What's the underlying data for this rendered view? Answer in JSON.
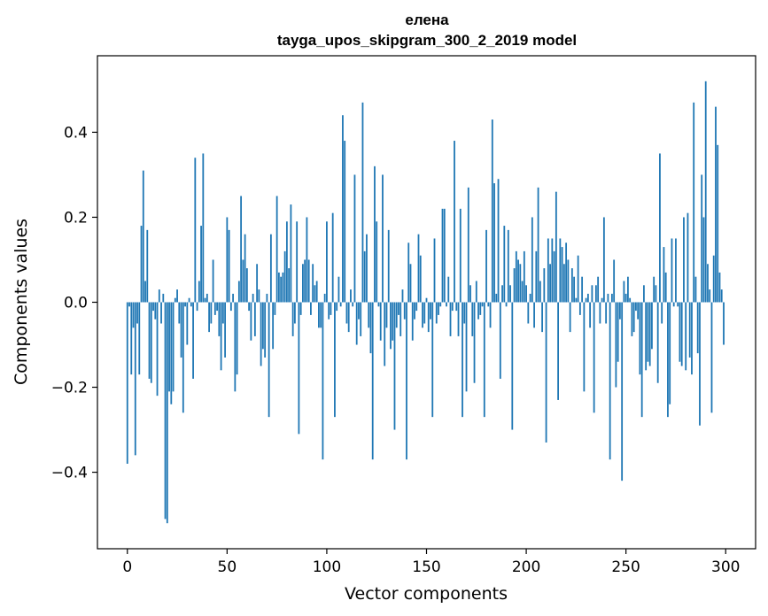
{
  "chart_data": {
    "type": "bar",
    "title": "елена",
    "subtitle": "tayga_upos_skipgram_300_2_2019 model",
    "xlabel": "Vector components",
    "ylabel": "Components values",
    "xlim": [
      -15,
      315
    ],
    "ylim": [
      -0.58,
      0.58
    ],
    "xticks": [
      0,
      50,
      100,
      150,
      200,
      250,
      300
    ],
    "xtick_labels": [
      "0",
      "50",
      "100",
      "150",
      "200",
      "250",
      "300"
    ],
    "yticks": [
      -0.4,
      -0.2,
      0.0,
      0.2,
      0.4
    ],
    "ytick_labels": [
      "−0.4",
      "−0.2",
      "0.0",
      "0.2",
      "0.4"
    ],
    "grid": false,
    "bar_color": "#1f77b4",
    "x": [
      0,
      1,
      2,
      3,
      4,
      5,
      6,
      7,
      8,
      9,
      10,
      11,
      12,
      13,
      14,
      15,
      16,
      17,
      18,
      19,
      20,
      21,
      22,
      23,
      24,
      25,
      26,
      27,
      28,
      29,
      30,
      31,
      32,
      33,
      34,
      35,
      36,
      37,
      38,
      39,
      40,
      41,
      42,
      43,
      44,
      45,
      46,
      47,
      48,
      49,
      50,
      51,
      52,
      53,
      54,
      55,
      56,
      57,
      58,
      59,
      60,
      61,
      62,
      63,
      64,
      65,
      66,
      67,
      68,
      69,
      70,
      71,
      72,
      73,
      74,
      75,
      76,
      77,
      78,
      79,
      80,
      81,
      82,
      83,
      84,
      85,
      86,
      87,
      88,
      89,
      90,
      91,
      92,
      93,
      94,
      95,
      96,
      97,
      98,
      99,
      100,
      101,
      102,
      103,
      104,
      105,
      106,
      107,
      108,
      109,
      110,
      111,
      112,
      113,
      114,
      115,
      116,
      117,
      118,
      119,
      120,
      121,
      122,
      123,
      124,
      125,
      126,
      127,
      128,
      129,
      130,
      131,
      132,
      133,
      134,
      135,
      136,
      137,
      138,
      139,
      140,
      141,
      142,
      143,
      144,
      145,
      146,
      147,
      148,
      149,
      150,
      151,
      152,
      153,
      154,
      155,
      156,
      157,
      158,
      159,
      160,
      161,
      162,
      163,
      164,
      165,
      166,
      167,
      168,
      169,
      170,
      171,
      172,
      173,
      174,
      175,
      176,
      177,
      178,
      179,
      180,
      181,
      182,
      183,
      184,
      185,
      186,
      187,
      188,
      189,
      190,
      191,
      192,
      193,
      194,
      195,
      196,
      197,
      198,
      199,
      200,
      201,
      202,
      203,
      204,
      205,
      206,
      207,
      208,
      209,
      210,
      211,
      212,
      213,
      214,
      215,
      216,
      217,
      218,
      219,
      220,
      221,
      222,
      223,
      224,
      225,
      226,
      227,
      228,
      229,
      230,
      231,
      232,
      233,
      234,
      235,
      236,
      237,
      238,
      239,
      240,
      241,
      242,
      243,
      244,
      245,
      246,
      247,
      248,
      249,
      250,
      251,
      252,
      253,
      254,
      255,
      256,
      257,
      258,
      259,
      260,
      261,
      262,
      263,
      264,
      265,
      266,
      267,
      268,
      269,
      270,
      271,
      272,
      273,
      274,
      275,
      276,
      277,
      278,
      279,
      280,
      281,
      282,
      283,
      284,
      285,
      286,
      287,
      288,
      289,
      290,
      291,
      292,
      293,
      294,
      295,
      296,
      297,
      298,
      299
    ],
    "values": [
      -0.38,
      -0.01,
      -0.17,
      -0.06,
      -0.36,
      -0.05,
      -0.17,
      0.18,
      0.31,
      0.05,
      0.17,
      -0.18,
      -0.19,
      -0.02,
      -0.04,
      -0.22,
      0.03,
      -0.05,
      0.02,
      -0.51,
      -0.52,
      -0.21,
      -0.24,
      -0.21,
      0.01,
      0.03,
      -0.05,
      -0.13,
      -0.26,
      -0.01,
      -0.1,
      0.01,
      -0.01,
      -0.18,
      0.34,
      -0.02,
      0.05,
      0.18,
      0.35,
      0.01,
      0.02,
      -0.07,
      -0.05,
      0.1,
      -0.03,
      -0.02,
      -0.08,
      -0.16,
      -0.05,
      -0.13,
      0.2,
      0.17,
      -0.02,
      0.02,
      -0.21,
      -0.17,
      0.05,
      0.25,
      0.1,
      0.16,
      0.08,
      -0.02,
      -0.09,
      0.02,
      -0.08,
      0.09,
      0.03,
      -0.15,
      -0.11,
      -0.13,
      0.02,
      -0.27,
      0.16,
      -0.11,
      -0.03,
      0.25,
      0.07,
      0.06,
      0.07,
      0.12,
      0.19,
      0.08,
      0.23,
      -0.08,
      -0.05,
      0.19,
      -0.31,
      -0.03,
      0.09,
      0.1,
      0.2,
      0.1,
      -0.03,
      0.09,
      0.04,
      0.05,
      -0.06,
      -0.06,
      -0.37,
      0.02,
      0.19,
      -0.04,
      -0.03,
      0.21,
      -0.27,
      -0.02,
      0.06,
      -0.01,
      0.44,
      0.38,
      -0.05,
      -0.07,
      0.03,
      -0.01,
      0.3,
      -0.1,
      -0.04,
      -0.08,
      0.47,
      0.12,
      0.16,
      -0.06,
      -0.12,
      -0.37,
      0.32,
      0.19,
      -0.01,
      -0.09,
      0.3,
      -0.15,
      -0.06,
      0.17,
      -0.11,
      -0.09,
      -0.3,
      -0.06,
      -0.03,
      -0.08,
      0.03,
      -0.04,
      -0.37,
      0.14,
      0.09,
      -0.09,
      -0.04,
      -0.02,
      0.16,
      0.11,
      -0.06,
      -0.05,
      0.01,
      -0.07,
      -0.04,
      -0.27,
      0.15,
      -0.05,
      -0.03,
      -0.01,
      0.22,
      0.22,
      -0.01,
      0.06,
      -0.08,
      -0.02,
      0.38,
      -0.02,
      -0.08,
      0.22,
      -0.27,
      -0.05,
      -0.21,
      0.27,
      0.04,
      -0.08,
      -0.19,
      0.05,
      -0.04,
      -0.03,
      -0.01,
      -0.27,
      0.17,
      -0.01,
      -0.06,
      0.43,
      0.28,
      0.02,
      0.29,
      -0.18,
      0.04,
      0.18,
      -0.01,
      0.17,
      0.04,
      -0.3,
      0.08,
      0.12,
      0.1,
      0.09,
      0.05,
      0.12,
      0.04,
      -0.05,
      0.02,
      0.2,
      -0.06,
      0.12,
      0.27,
      0.05,
      -0.07,
      0.08,
      -0.33,
      0.15,
      0.09,
      0.15,
      0.12,
      0.26,
      -0.23,
      0.15,
      0.13,
      0.09,
      0.14,
      0.1,
      -0.07,
      0.08,
      0.06,
      0.01,
      0.11,
      -0.03,
      0.06,
      -0.21,
      0.01,
      0.02,
      -0.06,
      0.04,
      -0.26,
      0.04,
      0.06,
      -0.05,
      0.01,
      0.2,
      -0.05,
      0.02,
      -0.37,
      0.02,
      0.1,
      -0.2,
      -0.14,
      -0.04,
      -0.42,
      0.05,
      0.02,
      0.06,
      0.01,
      -0.08,
      -0.07,
      -0.02,
      -0.04,
      -0.17,
      -0.27,
      0.04,
      -0.16,
      -0.14,
      -0.15,
      -0.11,
      0.06,
      0.04,
      -0.19,
      0.35,
      -0.05,
      0.13,
      0.07,
      -0.27,
      -0.24,
      0.15,
      -0.01,
      0.15,
      -0.01,
      -0.14,
      -0.15,
      0.2,
      -0.16,
      0.21,
      -0.13,
      -0.17,
      0.47,
      0.06,
      -0.12,
      -0.29,
      0.3,
      0.2,
      0.52,
      0.09,
      0.03,
      -0.26,
      0.11,
      0.46,
      0.37,
      0.07,
      0.03,
      -0.1
    ]
  }
}
